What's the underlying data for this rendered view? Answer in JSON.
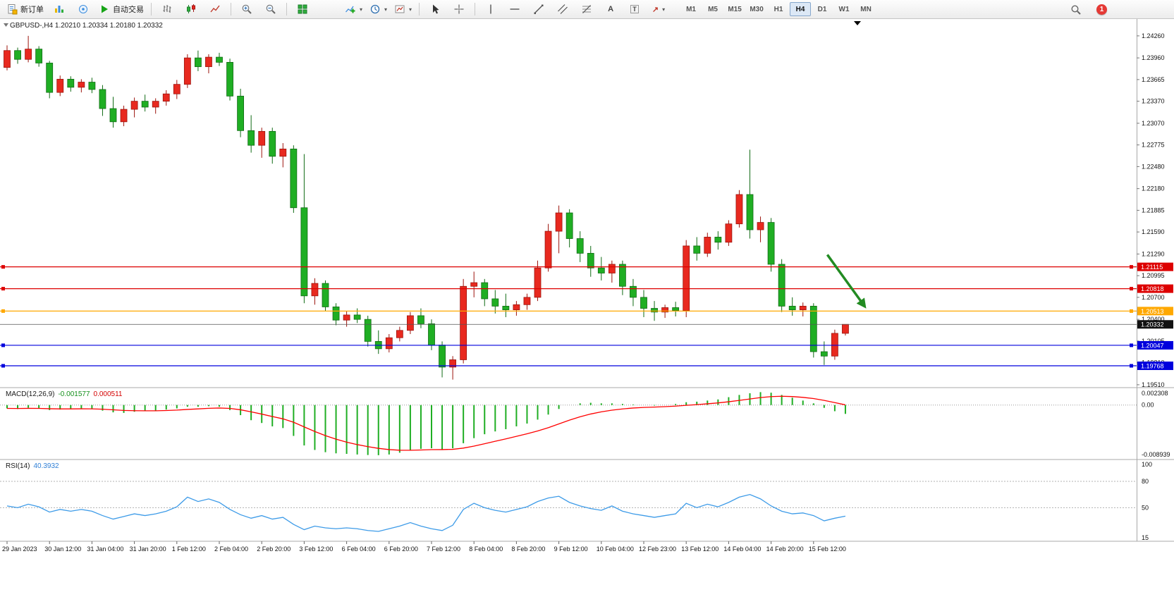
{
  "toolbar": {
    "new_order_label": "新订单",
    "autotrading_label": "自动交易",
    "timeframes": [
      "M1",
      "M5",
      "M15",
      "M30",
      "H1",
      "H4",
      "D1",
      "W1",
      "MN"
    ],
    "active_timeframe": "H4",
    "notification_count": "1",
    "icons": {
      "caret_glyph": "▾",
      "text_tool_glyph": "A",
      "label_tool_glyph": "T",
      "arrow_tool_glyph": "↗"
    }
  },
  "chart": {
    "symbol_header": "GBPUSD-,H4 1.20210 1.20334 1.20180 1.20332"
  },
  "chart_data": [
    {
      "type": "candlestick",
      "title": "GBPUSD-,H4",
      "timeframe": "H4",
      "ohlc_display": {
        "open": "1.20210",
        "high": "1.20334",
        "low": "1.20180",
        "close": "1.20332"
      },
      "ylim": [
        1.1949,
        1.2447
      ],
      "y_ticks": [
        "1.24260",
        "1.23960",
        "1.23665",
        "1.23370",
        "1.23070",
        "1.22775",
        "1.22480",
        "1.22180",
        "1.21885",
        "1.21590",
        "1.21290",
        "1.20995",
        "1.20700",
        "1.20400",
        "1.20105",
        "1.19810",
        "1.19510"
      ],
      "x_labels": [
        "29 Jan 2023",
        "30 Jan 12:00",
        "31 Jan 04:00",
        "31 Jan 20:00",
        "1 Feb 12:00",
        "2 Feb 04:00",
        "2 Feb 20:00",
        "3 Feb 12:00",
        "6 Feb 04:00",
        "6 Feb 20:00",
        "7 Feb 12:00",
        "8 Feb 04:00",
        "8 Feb 20:00",
        "9 Feb 12:00",
        "10 Feb 04:00",
        "12 Feb 23:00",
        "13 Feb 12:00",
        "14 Feb 04:00",
        "14 Feb 20:00",
        "15 Feb 12:00"
      ],
      "x_label_step_bars": 4,
      "colors": {
        "up": "#e8291f",
        "down": "#1fae23"
      },
      "candles": [
        [
          1.2383,
          1.2413,
          1.2379,
          1.2406
        ],
        [
          1.2406,
          1.241,
          1.2388,
          1.2394
        ],
        [
          1.2394,
          1.2426,
          1.239,
          1.2408
        ],
        [
          1.2408,
          1.2412,
          1.2384,
          1.2389
        ],
        [
          1.2389,
          1.2392,
          1.2341,
          1.2349
        ],
        [
          1.2349,
          1.2372,
          1.2344,
          1.2367
        ],
        [
          1.2367,
          1.2371,
          1.235,
          1.2356
        ],
        [
          1.2356,
          1.2367,
          1.2349,
          1.2363
        ],
        [
          1.2363,
          1.2369,
          1.2348,
          1.2353
        ],
        [
          1.2353,
          1.2359,
          1.2317,
          1.2327
        ],
        [
          1.2327,
          1.2343,
          1.2301,
          1.2309
        ],
        [
          1.2309,
          1.2331,
          1.2303,
          1.2326
        ],
        [
          1.2326,
          1.2342,
          1.2315,
          1.2337
        ],
        [
          1.2337,
          1.2346,
          1.2323,
          1.2329
        ],
        [
          1.2329,
          1.2341,
          1.232,
          1.2337
        ],
        [
          1.2337,
          1.2352,
          1.2331,
          1.2347
        ],
        [
          1.2347,
          1.2366,
          1.234,
          1.236
        ],
        [
          1.236,
          1.2401,
          1.2355,
          1.2396
        ],
        [
          1.2396,
          1.2406,
          1.2378,
          1.2384
        ],
        [
          1.2384,
          1.2401,
          1.2375,
          1.2397
        ],
        [
          1.2397,
          1.2403,
          1.2385,
          1.239
        ],
        [
          1.239,
          1.2395,
          1.2338,
          1.2344
        ],
        [
          1.2344,
          1.2354,
          1.2288,
          1.2297
        ],
        [
          1.2297,
          1.2318,
          1.2267,
          1.2277
        ],
        [
          1.2277,
          1.2301,
          1.226,
          1.2296
        ],
        [
          1.2296,
          1.2301,
          1.2252,
          1.2262
        ],
        [
          1.2262,
          1.228,
          1.2247,
          1.2272
        ],
        [
          1.2272,
          1.2277,
          1.2185,
          1.2192
        ],
        [
          1.2192,
          1.2265,
          1.2062,
          1.2072
        ],
        [
          1.2072,
          1.2096,
          1.206,
          1.2089
        ],
        [
          1.2089,
          1.2093,
          1.2051,
          1.2057
        ],
        [
          1.2057,
          1.2062,
          1.2032,
          1.2039
        ],
        [
          1.2039,
          1.2051,
          1.203,
          1.2046
        ],
        [
          1.2046,
          1.2055,
          1.2035,
          1.204
        ],
        [
          1.204,
          1.2045,
          1.2003,
          1.201
        ],
        [
          1.201,
          1.2025,
          1.1993,
          1.2
        ],
        [
          1.2,
          1.202,
          1.1995,
          1.2015
        ],
        [
          1.2015,
          1.203,
          1.201,
          1.2025
        ],
        [
          1.2025,
          1.205,
          1.202,
          1.2045
        ],
        [
          1.2045,
          1.2055,
          1.2028,
          1.2034
        ],
        [
          1.2034,
          1.204,
          1.1998,
          1.2005
        ],
        [
          1.2005,
          1.201,
          1.1961,
          1.1975
        ],
        [
          1.1975,
          1.199,
          1.1958,
          1.1985
        ],
        [
          1.1985,
          1.2095,
          1.198,
          1.2085
        ],
        [
          1.2085,
          1.2105,
          1.207,
          1.209
        ],
        [
          1.209,
          1.2095,
          1.2058,
          1.2068
        ],
        [
          1.2068,
          1.208,
          1.2048,
          1.2058
        ],
        [
          1.2058,
          1.2075,
          1.2043,
          1.2053
        ],
        [
          1.2053,
          1.2065,
          1.2045,
          1.206
        ],
        [
          1.206,
          1.2075,
          1.2053,
          1.207
        ],
        [
          1.207,
          1.212,
          1.2065,
          1.211
        ],
        [
          1.211,
          1.217,
          1.2105,
          1.216
        ],
        [
          1.216,
          1.2195,
          1.213,
          1.2185
        ],
        [
          1.2185,
          1.219,
          1.2138,
          1.215
        ],
        [
          1.215,
          1.216,
          1.2118,
          1.213
        ],
        [
          1.213,
          1.214,
          1.2098,
          1.211
        ],
        [
          1.211,
          1.2125,
          1.2093,
          1.2103
        ],
        [
          1.2103,
          1.212,
          1.209,
          1.2115
        ],
        [
          1.2115,
          1.212,
          1.2073,
          1.2085
        ],
        [
          1.2085,
          1.2095,
          1.2058,
          1.207
        ],
        [
          1.207,
          1.208,
          1.2043,
          1.2055
        ],
        [
          1.2055,
          1.2065,
          1.2038,
          1.205
        ],
        [
          1.205,
          1.206,
          1.2042,
          1.2056
        ],
        [
          1.2056,
          1.2064,
          1.2044,
          1.2052
        ],
        [
          1.2052,
          1.2148,
          1.2043,
          1.214
        ],
        [
          1.214,
          1.2152,
          1.212,
          1.213
        ],
        [
          1.213,
          1.2158,
          1.2125,
          1.2152
        ],
        [
          1.2152,
          1.216,
          1.2135,
          1.2145
        ],
        [
          1.2145,
          1.2175,
          1.214,
          1.217
        ],
        [
          1.217,
          1.2216,
          1.2165,
          1.221
        ],
        [
          1.221,
          1.2271,
          1.215,
          1.2162
        ],
        [
          1.2162,
          1.218,
          1.2145,
          1.2172
        ],
        [
          1.2172,
          1.2178,
          1.2105,
          1.2115
        ],
        [
          1.2115,
          1.2122,
          1.205,
          1.2058
        ],
        [
          1.2058,
          1.207,
          1.2045,
          1.2053
        ],
        [
          1.2053,
          1.2063,
          1.2044,
          1.2058
        ],
        [
          1.2058,
          1.2062,
          1.1988,
          1.1996
        ],
        [
          1.1996,
          1.201,
          1.1978,
          1.199
        ],
        [
          1.199,
          1.2026,
          1.1985,
          1.2021
        ],
        [
          1.2021,
          1.20334,
          1.2018,
          1.20332
        ]
      ],
      "hlines": [
        {
          "price": 1.21115,
          "label": "1.21115",
          "color": "#dd0000"
        },
        {
          "price": 1.20818,
          "label": "1.20818",
          "color": "#dd0000"
        },
        {
          "price": 1.20513,
          "label": "1.20513",
          "color": "#ffa800"
        },
        {
          "price": 1.20047,
          "label": "1.20047",
          "color": "#0000dd"
        },
        {
          "price": 1.19768,
          "label": "1.19768",
          "color": "#0000dd"
        }
      ],
      "bid": {
        "price": 1.20332,
        "label": "1.20332",
        "color": "#111111"
      },
      "arrow": {
        "x1_bar": 77.3,
        "price1": 1.2128,
        "x2_bar": 80.8,
        "price2": 1.2058,
        "color": "#228B22"
      }
    },
    {
      "type": "macd",
      "label": "MACD(12,26,9)",
      "main_value_label": "-0.001577",
      "signal_value_label": "0.000511",
      "scale": [
        "0.002308",
        "0.00",
        "-0.008939"
      ],
      "ylim": [
        -0.0092,
        0.0026
      ],
      "colors": {
        "histogram": "#1fae23",
        "signal": "#ff0000"
      },
      "main": [
        -0.0006,
        -0.0007,
        -0.0005,
        -0.0006,
        -0.0009,
        -0.0008,
        -0.0007,
        -0.0006,
        -0.0007,
        -0.001,
        -0.0013,
        -0.0014,
        -0.0012,
        -0.0011,
        -0.001,
        -0.0008,
        -0.0006,
        -0.0003,
        -0.0003,
        -0.0002,
        -0.0003,
        -0.0009,
        -0.0018,
        -0.0027,
        -0.0032,
        -0.0038,
        -0.0041,
        -0.0055,
        -0.0072,
        -0.008,
        -0.0084,
        -0.0086,
        -0.0087,
        -0.0088,
        -0.0089,
        -0.00893,
        -0.0088,
        -0.0085,
        -0.0081,
        -0.0078,
        -0.0077,
        -0.0079,
        -0.0077,
        -0.0068,
        -0.0059,
        -0.0052,
        -0.0047,
        -0.0043,
        -0.0038,
        -0.0033,
        -0.0026,
        -0.0017,
        -0.0007,
        0.0,
        0.0003,
        0.0004,
        0.0003,
        0.0003,
        0.0002,
        0.0001,
        0.0,
        -0.0001,
        0.0,
        0.0002,
        0.0005,
        0.0006,
        0.0008,
        0.001,
        0.0014,
        0.0018,
        0.0021,
        0.0023,
        0.0022,
        0.0018,
        0.0013,
        0.0008,
        0.0003,
        -0.0005,
        -0.0011,
        -0.001577
      ]
    },
    {
      "type": "rsi",
      "label": "RSI(14)",
      "value_label": "40.3932",
      "scale": [
        "100",
        "80",
        "50",
        "15"
      ],
      "levels": [
        80,
        50
      ],
      "ylim": [
        15,
        100
      ],
      "color": "#3d9be8",
      "values": [
        52,
        50,
        54,
        51,
        45,
        48,
        46,
        48,
        46,
        41,
        37,
        40,
        43,
        41,
        43,
        46,
        51,
        62,
        57,
        60,
        56,
        48,
        42,
        38,
        41,
        37,
        39,
        31,
        25,
        29,
        27,
        26,
        27,
        26,
        24,
        23,
        26,
        29,
        33,
        29,
        26,
        24,
        30,
        48,
        55,
        50,
        47,
        45,
        48,
        51,
        57,
        61,
        63,
        56,
        52,
        49,
        47,
        52,
        46,
        43,
        41,
        39,
        41,
        43,
        55,
        50,
        54,
        51,
        56,
        62,
        65,
        60,
        52,
        46,
        43,
        44,
        41,
        35,
        38,
        40.39
      ]
    }
  ]
}
